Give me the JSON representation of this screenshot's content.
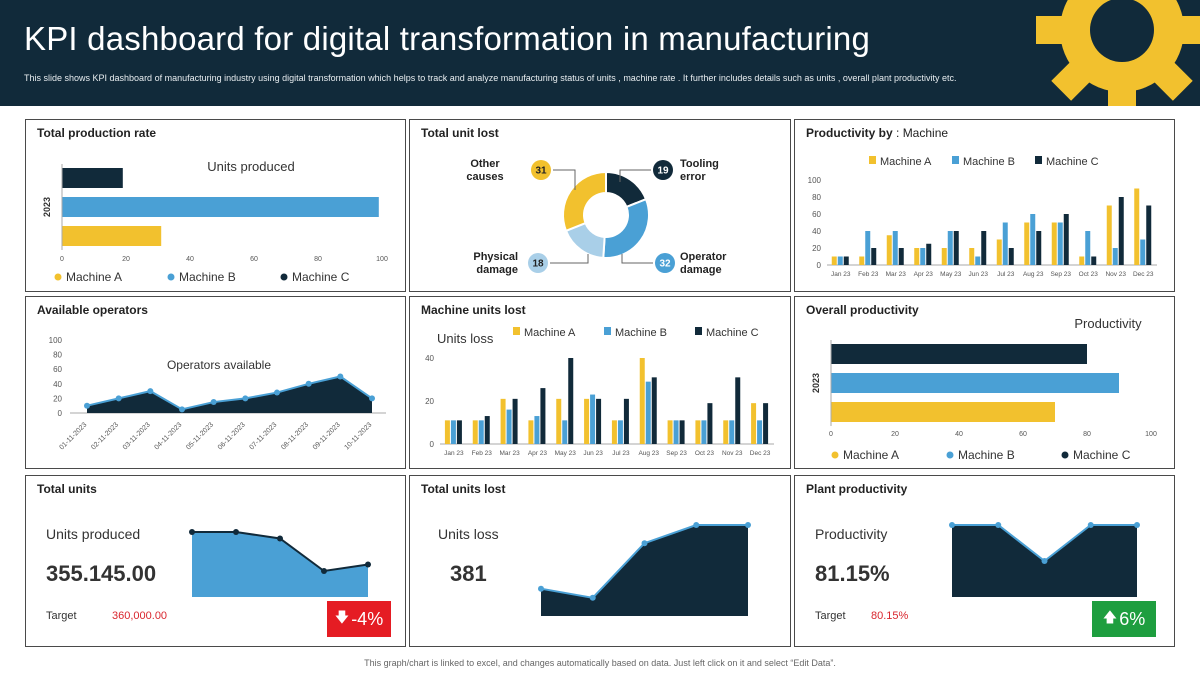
{
  "header": {
    "title": "KPI dashboard for digital transformation in manufacturing",
    "subtitle": "This slide shows KPI dashboard of manufacturing industry using digital transformation which helps to track and analyze manufacturing status of units , machine rate .  It  further includes details such as units , overall plant productivity etc."
  },
  "colors": {
    "machine_a": "#f2c12e",
    "machine_b": "#4aa0d5",
    "machine_c": "#112a3a",
    "header": "#112a3a"
  },
  "panels": {
    "total_production_rate": {
      "title": "Total production rate"
    },
    "total_unit_lost": {
      "title": "Total unit lost"
    },
    "productivity_by": {
      "title_bold": "Productivity by",
      "title_rest": " : Machine"
    },
    "available_operators": {
      "title": "Available operators"
    },
    "machine_units_lost": {
      "title": "Machine units lost"
    },
    "overall_productivity": {
      "title": "Overall productivity"
    },
    "total_units": {
      "title": "Total units",
      "label": "Units produced",
      "value": "355.145.00",
      "target_label": "Target",
      "target_value": "360,000.00",
      "change": "-4%",
      "change_icon": "arrow-down-icon"
    },
    "total_units_lost": {
      "title": "Total units lost",
      "label": "Units loss",
      "value": "381"
    },
    "plant_productivity": {
      "title": "Plant productivity",
      "label": "Productivity",
      "value": "81.15%",
      "target_label": "Target",
      "target_value": "80.15%",
      "change": "6%",
      "change_icon": "arrow-up-icon"
    }
  },
  "footer": "This graph/chart is linked to excel, and changes automatically based on data. Just left click on it and select “Edit Data”.",
  "chart_data": [
    {
      "id": "total_production_rate",
      "type": "bar",
      "orientation": "horizontal",
      "title": "Units produced",
      "categories": [
        "2023"
      ],
      "series": [
        {
          "name": "Machine A",
          "values": [
            31
          ]
        },
        {
          "name": "Machine B",
          "values": [
            99
          ]
        },
        {
          "name": "Machine C",
          "values": [
            19
          ]
        }
      ],
      "xlim": [
        0,
        100
      ],
      "xticks": [
        "0",
        "20",
        "40",
        "60",
        "80",
        "100"
      ],
      "legend": "bottom"
    },
    {
      "id": "total_unit_lost",
      "type": "pie",
      "labels": [
        "Other causes",
        "Tooling error",
        "Operator damage",
        "Physical damage"
      ],
      "values": [
        31,
        19,
        32,
        18
      ],
      "colors": [
        "#f2c12e",
        "#112a3a",
        "#4aa0d5",
        "#a9cfe8"
      ]
    },
    {
      "id": "productivity_by_machine",
      "type": "bar",
      "categories": [
        "Jan 23",
        "Feb 23",
        "Mar 23",
        "Apr 23",
        "May 23",
        "Jun 23",
        "Jul 23",
        "Aug 23",
        "Sep 23",
        "Oct 23",
        "Nov 23",
        "Dec 23"
      ],
      "series": [
        {
          "name": "Machine A",
          "values": [
            10,
            10,
            35,
            20,
            20,
            20,
            30,
            50,
            50,
            10,
            70,
            90
          ]
        },
        {
          "name": "Machine B",
          "values": [
            10,
            40,
            40,
            20,
            40,
            10,
            50,
            60,
            50,
            40,
            20,
            30
          ]
        },
        {
          "name": "Machine C",
          "values": [
            10,
            20,
            20,
            25,
            40,
            40,
            20,
            40,
            60,
            10,
            80,
            70
          ]
        }
      ],
      "ylim": [
        0,
        100
      ],
      "yticks": [
        "0",
        "20",
        "40",
        "60",
        "80",
        "100"
      ],
      "legend": "top"
    },
    {
      "id": "available_operators",
      "type": "area",
      "title": "Operators  available",
      "categories": [
        "01-11-2023",
        "02-11-2023",
        "03-11-2023",
        "04-11-2023",
        "05-11-2023",
        "06-11-2023",
        "07-11-2023",
        "08-11-2023",
        "09-11-2023",
        "10-11-2023"
      ],
      "values": [
        10,
        20,
        30,
        5,
        15,
        20,
        28,
        40,
        50,
        20
      ],
      "ylim": [
        0,
        100
      ],
      "yticks": [
        "0",
        "20",
        "40",
        "60",
        "80",
        "100"
      ]
    },
    {
      "id": "machine_units_lost",
      "type": "bar",
      "title": "Units loss",
      "categories": [
        "Jan 23",
        "Feb 23",
        "Mar 23",
        "Apr 23",
        "May 23",
        "Jun 23",
        "Jul 23",
        "Aug 23",
        "Sep 23",
        "Oct 23",
        "Nov 23",
        "Dec 23"
      ],
      "series": [
        {
          "name": "Machine A",
          "values": [
            11,
            11,
            21,
            11,
            21,
            21,
            11,
            40,
            11,
            11,
            11,
            19
          ]
        },
        {
          "name": "Machine B",
          "values": [
            11,
            11,
            16,
            13,
            11,
            23,
            11,
            29,
            11,
            11,
            11,
            11
          ]
        },
        {
          "name": "Machine C",
          "values": [
            11,
            13,
            21,
            26,
            40,
            21,
            21,
            31,
            11,
            19,
            31,
            19
          ]
        }
      ],
      "ylim": [
        0,
        40
      ],
      "yticks": [
        "0",
        "20",
        "40"
      ],
      "legend": "top"
    },
    {
      "id": "overall_productivity",
      "type": "bar",
      "orientation": "horizontal",
      "title": "Productivity",
      "categories": [
        "2023"
      ],
      "series": [
        {
          "name": "Machine A",
          "values": [
            70
          ]
        },
        {
          "name": "Machine B",
          "values": [
            90
          ]
        },
        {
          "name": "Machine C",
          "values": [
            80
          ]
        }
      ],
      "xlim": [
        0,
        100
      ],
      "xticks": [
        "0",
        "20",
        "40",
        "60",
        "80",
        "100"
      ],
      "legend": "bottom"
    },
    {
      "id": "total_units_trend",
      "type": "area",
      "values": [
        100,
        100,
        90,
        40,
        50
      ]
    },
    {
      "id": "total_units_lost_trend",
      "type": "area",
      "values": [
        30,
        20,
        80,
        100,
        100
      ]
    },
    {
      "id": "plant_productivity_trend",
      "type": "area",
      "values": [
        100,
        100,
        50,
        100,
        100
      ]
    }
  ]
}
